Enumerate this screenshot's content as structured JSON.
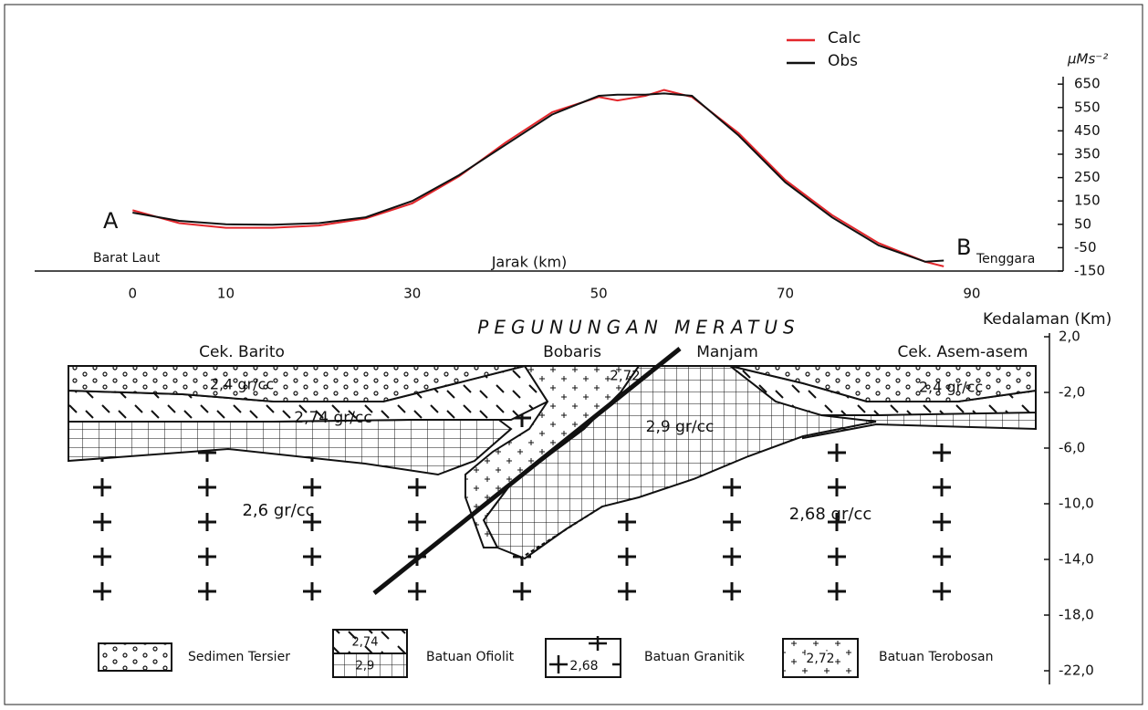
{
  "chart_data": {
    "type": "line",
    "x": [
      0,
      5,
      10,
      15,
      20,
      25,
      30,
      35,
      40,
      45,
      50,
      52,
      55,
      57,
      60,
      65,
      70,
      75,
      80,
      85,
      87
    ],
    "series": [
      {
        "name": "Calc",
        "color": "#e3262b",
        "values": [
          110,
          55,
          35,
          35,
          45,
          75,
          140,
          255,
          400,
          530,
          595,
          580,
          600,
          625,
          595,
          440,
          240,
          90,
          -30,
          -110,
          -130
        ]
      },
      {
        "name": "Obs",
        "color": "#111111",
        "values": [
          100,
          65,
          50,
          48,
          55,
          80,
          150,
          260,
          390,
          520,
          600,
          605,
          605,
          610,
          600,
          430,
          230,
          80,
          -40,
          -110,
          -105
        ]
      }
    ],
    "xlim": [
      -10.5,
      99.8
    ],
    "xticks": [
      0,
      10,
      30,
      50,
      70,
      90
    ],
    "x_label": "Jarak (km)",
    "ylim": [
      -150,
      680
    ],
    "yticks": [
      650,
      550,
      450,
      350,
      250,
      150,
      50,
      -50,
      -150
    ],
    "y_label": "µMs⁻²",
    "annotations": {
      "start": "A",
      "end": "B",
      "start_direction": "Barat Laut",
      "end_direction": "Tenggara"
    }
  },
  "cross_section": {
    "title": "PEGUNUNGAN MERATUS",
    "depth_label": "Kedalaman (Km)",
    "depth_ticks": [
      {
        "value": 2,
        "label": "2,0"
      },
      {
        "value": -2,
        "label": "-2,0"
      },
      {
        "value": -6,
        "label": "-6,0"
      },
      {
        "value": -10,
        "label": "-10,0"
      },
      {
        "value": -14,
        "label": "-14,0"
      },
      {
        "value": -18,
        "label": "-18,0"
      },
      {
        "value": -22,
        "label": "-22,0"
      }
    ],
    "places": [
      "Cek. Barito",
      "Bobaris",
      "Manjam",
      "Cek. Asem-asem"
    ],
    "densities": [
      "2,4 gr/cc",
      "2,4 gr/cc",
      "2,74 gr/cc",
      "2,72",
      "2,9 gr/cc",
      "2,6 gr/cc",
      "2,68 gr/cc"
    ]
  },
  "legend": [
    {
      "label": "Sedimen Tersier"
    },
    {
      "label": "Batuan Ofiolit",
      "values": [
        "2,74",
        "2,9"
      ]
    },
    {
      "label": "Batuan Granitik",
      "values": [
        "2,68"
      ]
    },
    {
      "label": "Batuan Terobosan",
      "values": [
        "2,72"
      ]
    }
  ]
}
